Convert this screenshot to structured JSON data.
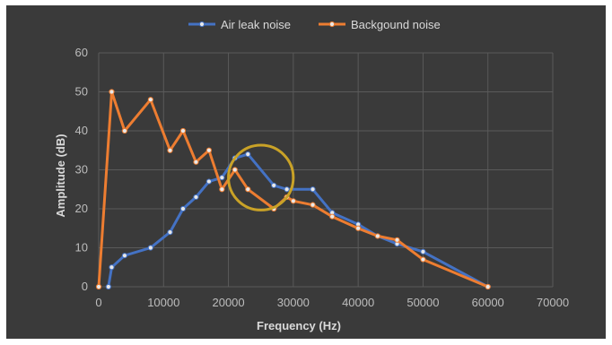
{
  "chart_data": {
    "type": "line",
    "title": "",
    "xlabel": "Frequency (Hz)",
    "ylabel": "Amplitude (dB)",
    "xlim": [
      0,
      70000
    ],
    "ylim": [
      0,
      60
    ],
    "x_ticks": [
      "0",
      "10000",
      "20000",
      "30000",
      "40000",
      "50000",
      "60000",
      "70000"
    ],
    "y_ticks": [
      "0",
      "10",
      "20",
      "30",
      "40",
      "50",
      "60"
    ],
    "grid": true,
    "legend_position": "top-center",
    "series": [
      {
        "name": "Air leak noise",
        "color": "#4472c4",
        "points": [
          [
            1500,
            0
          ],
          [
            2000,
            5
          ],
          [
            4000,
            8
          ],
          [
            8000,
            10
          ],
          [
            11000,
            14
          ],
          [
            13000,
            20
          ],
          [
            15000,
            23
          ],
          [
            17000,
            27
          ],
          [
            19000,
            28
          ],
          [
            21000,
            33
          ],
          [
            23000,
            34
          ],
          [
            27000,
            26
          ],
          [
            29000,
            25
          ],
          [
            33000,
            25
          ],
          [
            36000,
            19
          ],
          [
            40000,
            16
          ],
          [
            43000,
            13
          ],
          [
            46000,
            11
          ],
          [
            50000,
            9
          ],
          [
            60000,
            0
          ]
        ]
      },
      {
        "name": "Backgound noise",
        "color": "#ed7d31",
        "points": [
          [
            0,
            0
          ],
          [
            2000,
            50
          ],
          [
            4000,
            40
          ],
          [
            8000,
            48
          ],
          [
            11000,
            35
          ],
          [
            13000,
            40
          ],
          [
            15000,
            32
          ],
          [
            17000,
            35
          ],
          [
            19000,
            25
          ],
          [
            21000,
            30
          ],
          [
            23000,
            25
          ],
          [
            27000,
            20
          ],
          [
            29000,
            23
          ],
          [
            30000,
            22
          ],
          [
            33000,
            21
          ],
          [
            36000,
            18
          ],
          [
            40000,
            15
          ],
          [
            43000,
            13
          ],
          [
            46000,
            12
          ],
          [
            50000,
            7
          ],
          [
            60000,
            0
          ]
        ]
      }
    ],
    "annotation": {
      "shape": "circle",
      "color": "#c9a227",
      "center": [
        25000,
        28
      ],
      "radius_x": 5000
    }
  }
}
